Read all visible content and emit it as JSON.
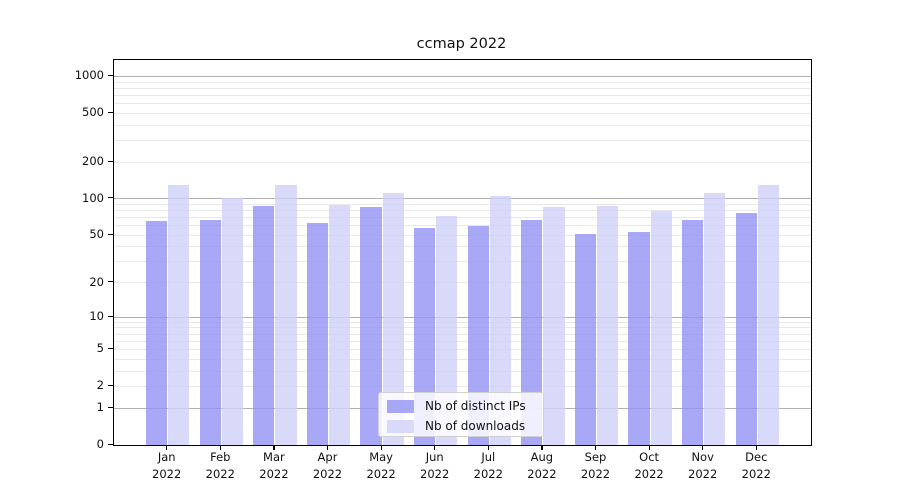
{
  "chart_data": {
    "type": "bar",
    "title": "ccmap 2022",
    "y_scale": "log10(1+v)",
    "ylim": [
      0,
      1350
    ],
    "grid": "both",
    "legend_position": "lower center",
    "x_month_labels": [
      "Jan",
      "Feb",
      "Mar",
      "Apr",
      "May",
      "Jun",
      "Jul",
      "Aug",
      "Sep",
      "Oct",
      "Nov",
      "Dec"
    ],
    "x_year_label": "2022",
    "y_ticks": [
      0,
      1,
      2,
      5,
      10,
      20,
      50,
      100,
      200,
      500,
      1000
    ],
    "y_major_gridlines": [
      1,
      10,
      100,
      1000
    ],
    "y_minor_gridlines": [
      2,
      3,
      4,
      5,
      6,
      7,
      8,
      9,
      20,
      30,
      40,
      50,
      60,
      70,
      80,
      90,
      200,
      300,
      400,
      500,
      600,
      700,
      800,
      900
    ],
    "series": [
      {
        "name": "Nb of distinct IPs",
        "color": "rgba(146,146,245,0.8)",
        "values": [
          66,
          67,
          88,
          63,
          85,
          57,
          60,
          67,
          51,
          53,
          67,
          76
        ]
      },
      {
        "name": "Nb of downloads",
        "color": "rgba(208,208,249,0.8)",
        "values": [
          130,
          102,
          130,
          89,
          111,
          72,
          105,
          85,
          88,
          80,
          111,
          130
        ]
      }
    ]
  }
}
